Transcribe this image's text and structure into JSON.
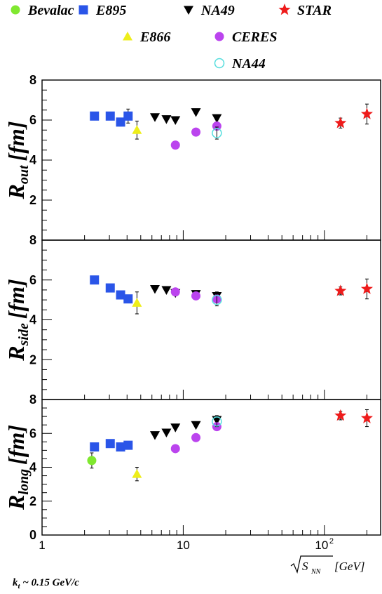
{
  "chart_data": {
    "type": "scatter",
    "x_scale": "log",
    "xlim": [
      1,
      250
    ],
    "x_tick_labels": [
      "1",
      "10",
      "10",
      "2"
    ],
    "xlabel": {
      "root": "S",
      "sub": "NN",
      "unit": "[GeV]"
    },
    "note": {
      "lead": "k",
      "sub": "t",
      "rest": " ~ 0.15 GeV/c"
    },
    "grid": false,
    "legend_position": "top",
    "legend": [
      {
        "name": "Bevalac",
        "marker": "circle",
        "color": "#80e830"
      },
      {
        "name": "E895",
        "marker": "square",
        "color": "#2a55e8"
      },
      {
        "name": "NA49",
        "marker": "triangle-down",
        "color": "#000000"
      },
      {
        "name": "STAR",
        "marker": "star",
        "color": "#ee1b1b"
      },
      {
        "name": "E866",
        "marker": "triangle-up",
        "color": "#eeee1a"
      },
      {
        "name": "CERES",
        "marker": "circle",
        "color": "#bb44ee"
      },
      {
        "name": "NA44",
        "marker": "open-circle",
        "color": "#55dddd"
      }
    ],
    "panels": [
      {
        "id": "rout",
        "ylabel": {
          "main": "R",
          "sub": "out",
          "unit": "[fm]"
        },
        "ylim": [
          0,
          8
        ],
        "y_ticks": [
          "2",
          "4",
          "6",
          "8"
        ],
        "series": [
          {
            "name": "E895",
            "points": [
              [
                2.35,
                6.2,
                0.15
              ],
              [
                3.04,
                6.2,
                0
              ],
              [
                3.6,
                5.9,
                0.2
              ],
              [
                4.07,
                6.2,
                0.35
              ]
            ]
          },
          {
            "name": "E866",
            "points": [
              [
                4.7,
                5.5,
                0.45
              ]
            ]
          },
          {
            "name": "NA49",
            "points": [
              [
                6.3,
                6.15,
                0
              ],
              [
                7.6,
                6.05,
                0
              ],
              [
                8.8,
                6.0,
                0
              ],
              [
                12.3,
                6.4,
                0
              ],
              [
                17.3,
                6.1,
                0
              ]
            ]
          },
          {
            "name": "CERES",
            "points": [
              [
                8.8,
                4.75,
                0
              ],
              [
                12.3,
                5.4,
                0
              ],
              [
                17.3,
                5.7,
                0.2
              ]
            ]
          },
          {
            "name": "NA44",
            "points": [
              [
                17.3,
                5.35,
                0.3
              ]
            ]
          },
          {
            "name": "STAR",
            "points": [
              [
                130,
                5.85,
                0.25
              ],
              [
                200,
                6.3,
                0.5
              ]
            ]
          }
        ]
      },
      {
        "id": "rside",
        "ylabel": {
          "main": "R",
          "sub": "side",
          "unit": "[fm]"
        },
        "ylim": [
          0,
          8
        ],
        "y_ticks": [
          "2",
          "4",
          "6",
          "8"
        ],
        "series": [
          {
            "name": "E895",
            "points": [
              [
                2.35,
                6.0,
                0
              ],
              [
                3.04,
                5.6,
                0
              ],
              [
                3.6,
                5.25,
                0
              ],
              [
                4.07,
                5.05,
                0
              ]
            ]
          },
          {
            "name": "E866",
            "points": [
              [
                4.7,
                4.85,
                0.55
              ]
            ]
          },
          {
            "name": "NA49",
            "points": [
              [
                6.3,
                5.55,
                0
              ],
              [
                7.6,
                5.5,
                0
              ],
              [
                8.8,
                5.35,
                0
              ],
              [
                12.3,
                5.3,
                0
              ],
              [
                17.3,
                5.2,
                0.2
              ]
            ]
          },
          {
            "name": "CERES",
            "points": [
              [
                8.8,
                5.4,
                0
              ],
              [
                12.3,
                5.2,
                0
              ],
              [
                17.3,
                5.05,
                0.2
              ]
            ]
          },
          {
            "name": "NA44",
            "points": [
              [
                17.3,
                5.0,
                0.3
              ]
            ]
          },
          {
            "name": "STAR",
            "points": [
              [
                130,
                5.45,
                0.2
              ],
              [
                200,
                5.55,
                0.5
              ]
            ]
          }
        ]
      },
      {
        "id": "rlong",
        "ylabel": {
          "main": "R",
          "sub": "long",
          "unit": "[fm]"
        },
        "ylim": [
          0,
          8
        ],
        "y_ticks": [
          "0",
          "2",
          "4",
          "6",
          "8"
        ],
        "series": [
          {
            "name": "Bevalac",
            "points": [
              [
                2.25,
                4.4,
                0.45
              ]
            ]
          },
          {
            "name": "E895",
            "points": [
              [
                2.35,
                5.2,
                0
              ],
              [
                3.04,
                5.4,
                0
              ],
              [
                3.6,
                5.2,
                0
              ],
              [
                4.07,
                5.3,
                0
              ]
            ]
          },
          {
            "name": "E866",
            "points": [
              [
                4.7,
                3.6,
                0.4
              ]
            ]
          },
          {
            "name": "NA49",
            "points": [
              [
                6.3,
                5.9,
                0
              ],
              [
                7.6,
                6.05,
                0
              ],
              [
                8.8,
                6.35,
                0
              ],
              [
                12.3,
                6.5,
                0
              ],
              [
                17.3,
                6.8,
                0.25
              ]
            ]
          },
          {
            "name": "CERES",
            "points": [
              [
                8.8,
                5.1,
                0
              ],
              [
                12.3,
                5.75,
                0
              ],
              [
                17.3,
                6.4,
                0
              ]
            ]
          },
          {
            "name": "NA44",
            "points": [
              [
                17.3,
                6.7,
                0.3
              ]
            ]
          },
          {
            "name": "STAR",
            "points": [
              [
                130,
                7.05,
                0.25
              ],
              [
                200,
                6.9,
                0.5
              ]
            ]
          }
        ]
      }
    ]
  }
}
